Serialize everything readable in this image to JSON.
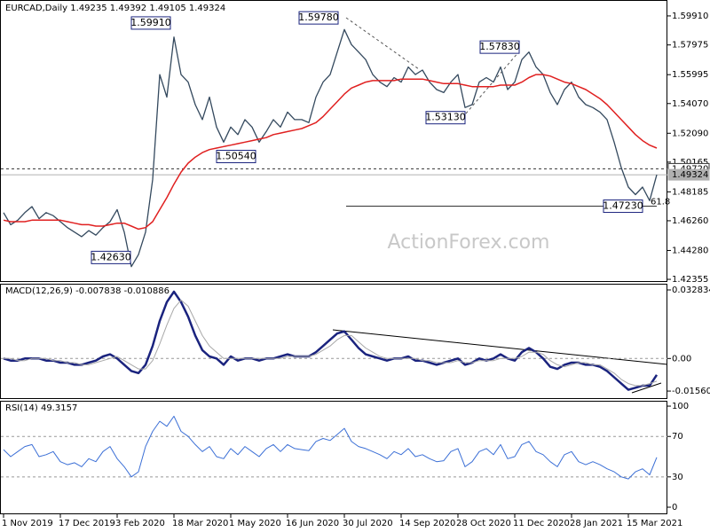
{
  "chart_data": [
    {
      "type": "line",
      "title": "EURCAD,Daily 1.49235 1.49392 1.49105 1.49324",
      "watermark": "ActionForex.com",
      "series": [
        {
          "color": "#34495e",
          "values": [
            1.468,
            1.46,
            1.463,
            1.468,
            1.472,
            1.464,
            1.468,
            1.466,
            1.462,
            1.458,
            1.455,
            1.452,
            1.456,
            1.453,
            1.458,
            1.462,
            1.47,
            1.455,
            1.432,
            1.44,
            1.455,
            1.49,
            1.56,
            1.545,
            1.585,
            1.56,
            1.555,
            1.54,
            1.53,
            1.545,
            1.525,
            1.515,
            1.525,
            1.52,
            1.53,
            1.525,
            1.515,
            1.522,
            1.53,
            1.525,
            1.535,
            1.53,
            1.53,
            1.528,
            1.545,
            1.555,
            1.56,
            1.575,
            1.59,
            1.58,
            1.575,
            1.57,
            1.56,
            1.555,
            1.552,
            1.558,
            1.555,
            1.565,
            1.56,
            1.563,
            1.555,
            1.55,
            1.548,
            1.555,
            1.56,
            1.538,
            1.54,
            1.555,
            1.558,
            1.555,
            1.565,
            1.55,
            1.555,
            1.57,
            1.575,
            1.565,
            1.56,
            1.548,
            1.54,
            1.55,
            1.555,
            1.545,
            1.54,
            1.538,
            1.535,
            1.53,
            1.515,
            1.498,
            1.485,
            1.48,
            1.485,
            1.476,
            1.49324
          ]
        },
        {
          "color": "#e02020",
          "values": [
            1.463,
            1.462,
            1.462,
            1.462,
            1.463,
            1.463,
            1.463,
            1.463,
            1.463,
            1.462,
            1.461,
            1.46,
            1.46,
            1.459,
            1.459,
            1.46,
            1.461,
            1.461,
            1.459,
            1.457,
            1.458,
            1.462,
            1.47,
            1.478,
            1.487,
            1.495,
            1.501,
            1.505,
            1.508,
            1.51,
            1.511,
            1.512,
            1.513,
            1.514,
            1.515,
            1.516,
            1.517,
            1.518,
            1.52,
            1.521,
            1.522,
            1.523,
            1.524,
            1.526,
            1.528,
            1.532,
            1.537,
            1.542,
            1.547,
            1.551,
            1.553,
            1.555,
            1.556,
            1.556,
            1.556,
            1.556,
            1.557,
            1.557,
            1.557,
            1.557,
            1.556,
            1.555,
            1.554,
            1.554,
            1.554,
            1.553,
            1.552,
            1.552,
            1.552,
            1.552,
            1.553,
            1.553,
            1.553,
            1.555,
            1.558,
            1.56,
            1.56,
            1.559,
            1.557,
            1.555,
            1.554,
            1.552,
            1.55,
            1.547,
            1.544,
            1.54,
            1.535,
            1.53,
            1.525,
            1.52,
            1.516,
            1.513,
            1.511
          ]
        }
      ],
      "ylim": [
        1.4218,
        1.6097
      ],
      "yticks": [
        {
          "value": 1.5991,
          "label": "1.59910"
        },
        1.57975,
        1.55995,
        {
          "value": 1.5407,
          "label": "1.54070"
        },
        {
          "value": 1.5209,
          "label": "1.52090"
        },
        1.50165,
        1.48185,
        {
          "value": 1.4626,
          "label": "1.46260"
        },
        {
          "value": 1.4428,
          "label": "1.44280"
        },
        1.42355
      ],
      "annotations": [
        {
          "value": 1.5991,
          "label": "1.59910"
        },
        {
          "value": 1.5978,
          "label": "1.59780"
        },
        {
          "value": 1.5783,
          "label": "1.57830"
        },
        {
          "value": 1.5313,
          "label": "1.53130"
        },
        {
          "value": 1.5054,
          "label": "1.50540"
        },
        {
          "value": 1.4263,
          "label": "1.42630"
        },
        {
          "value": 1.4723,
          "label": "1.47230"
        }
      ],
      "fib_label": "61.8",
      "hlines": [
        {
          "value": 1.4972,
          "label": "1.49720",
          "style": "dashed",
          "color": "#333333"
        },
        {
          "value": 1.49324,
          "label": "1.49324",
          "style": "solid",
          "color": "#b0b0b0"
        }
      ]
    },
    {
      "type": "line",
      "title": "MACD(12,26,9) -0.007838 -0.010886",
      "series": [
        {
          "color": "#1a237e",
          "values": [
            0,
            -0.001,
            -0.001,
            0,
            0,
            0,
            -0.001,
            -0.001,
            -0.002,
            -0.002,
            -0.003,
            -0.003,
            -0.002,
            -0.001,
            0.001,
            0.002,
            0,
            -0.003,
            -0.006,
            -0.007,
            -0.003,
            0.006,
            0.018,
            0.027,
            0.032,
            0.027,
            0.02,
            0.011,
            0.004,
            0.001,
            0,
            -0.003,
            0.001,
            -0.001,
            0,
            0,
            -0.001,
            0,
            0,
            0.001,
            0.002,
            0.001,
            0.001,
            0.001,
            0.003,
            0.006,
            0.009,
            0.012,
            0.013,
            0.009,
            0.005,
            0.002,
            0.001,
            0,
            -0.001,
            0,
            0,
            0.001,
            -0.001,
            -0.001,
            -0.002,
            -0.003,
            -0.002,
            -0.001,
            0,
            -0.003,
            -0.002,
            0,
            -0.001,
            0,
            0.002,
            0,
            -0.001,
            0.003,
            0.005,
            0.003,
            0,
            -0.004,
            -0.005,
            -0.003,
            -0.002,
            -0.002,
            -0.003,
            -0.003,
            -0.004,
            -0.006,
            -0.009,
            -0.012,
            -0.015,
            -0.014,
            -0.013,
            -0.013,
            -0.007838
          ]
        },
        {
          "color": "#a8a8a8",
          "values": [
            0,
            0,
            -0.001,
            -0.001,
            0,
            0,
            0,
            -0.001,
            -0.001,
            -0.002,
            -0.002,
            -0.003,
            -0.003,
            -0.002,
            -0.001,
            0,
            0.001,
            -0.001,
            -0.003,
            -0.005,
            -0.005,
            -0.001,
            0.007,
            0.016,
            0.024,
            0.028,
            0.025,
            0.018,
            0.011,
            0.006,
            0.003,
            0,
            0,
            0,
            0,
            0,
            0,
            0,
            0,
            0,
            0.001,
            0.001,
            0.001,
            0.001,
            0.002,
            0.004,
            0.006,
            0.009,
            0.011,
            0.011,
            0.008,
            0.005,
            0.003,
            0.001,
            0,
            0,
            0,
            0,
            0,
            -0.001,
            -0.001,
            -0.002,
            -0.002,
            -0.002,
            -0.001,
            -0.002,
            -0.002,
            -0.001,
            -0.001,
            -0.001,
            0,
            0,
            0,
            0.001,
            0.003,
            0.003,
            0.002,
            -0.001,
            -0.003,
            -0.004,
            -0.003,
            -0.002,
            -0.002,
            -0.003,
            -0.003,
            -0.005,
            -0.007,
            -0.01,
            -0.012,
            -0.013,
            -0.013,
            -0.012,
            -0.010886
          ]
        }
      ],
      "ylim": [
        -0.0194,
        0.0358
      ],
      "yticks": [
        0.032834,
        {
          "value": 0,
          "label": "0.00"
        },
        -0.015604
      ]
    },
    {
      "type": "line",
      "title": "RSI(14) 49.3157",
      "series": [
        {
          "color": "#3b6fd6",
          "values": [
            57,
            50,
            55,
            60,
            62,
            50,
            52,
            55,
            45,
            42,
            44,
            40,
            48,
            45,
            55,
            60,
            48,
            40,
            30,
            35,
            60,
            75,
            85,
            80,
            90,
            75,
            70,
            62,
            55,
            60,
            50,
            48,
            58,
            52,
            60,
            55,
            50,
            58,
            62,
            55,
            62,
            58,
            57,
            56,
            65,
            68,
            66,
            72,
            78,
            65,
            60,
            58,
            55,
            52,
            48,
            55,
            52,
            58,
            50,
            52,
            48,
            45,
            46,
            55,
            58,
            40,
            45,
            55,
            58,
            52,
            62,
            48,
            50,
            62,
            65,
            55,
            52,
            45,
            40,
            52,
            55,
            45,
            42,
            45,
            42,
            38,
            35,
            30,
            28,
            35,
            38,
            32,
            49.3157
          ]
        }
      ],
      "ylim": [
        -7,
        105.3
      ],
      "yticks": [
        100,
        70,
        30,
        0
      ],
      "categories": [
        "1 Nov 2019",
        null,
        null,
        null,
        null,
        null,
        null,
        null,
        "17 Dec 2019",
        null,
        null,
        null,
        null,
        null,
        null,
        null,
        "3 Feb 2020",
        null,
        null,
        null,
        null,
        null,
        null,
        null,
        "18 Mar 2020",
        null,
        null,
        null,
        null,
        null,
        null,
        null,
        "1 May 2020",
        null,
        null,
        null,
        null,
        null,
        null,
        null,
        "16 Jun 2020",
        null,
        null,
        null,
        null,
        null,
        null,
        null,
        "30 Jul 2020",
        null,
        null,
        null,
        null,
        null,
        null,
        null,
        "14 Sep 2020",
        null,
        null,
        null,
        null,
        null,
        null,
        null,
        "28 Oct 2020",
        null,
        null,
        null,
        null,
        null,
        null,
        null,
        "11 Dec 2020",
        null,
        null,
        null,
        null,
        null,
        null,
        null,
        "28 Jan 2021",
        null,
        null,
        null,
        null,
        null,
        null,
        null,
        "15 Mar 2021",
        null,
        null,
        null,
        null
      ]
    }
  ]
}
